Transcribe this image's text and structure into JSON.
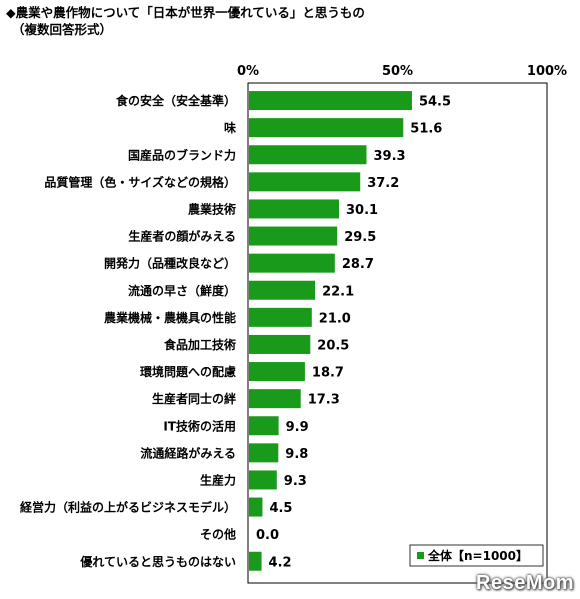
{
  "title": "◆農業や農作物について「日本が世界一優れている」と思うもの",
  "subtitle": "（複数回答形式）",
  "watermark": "ReseMom",
  "chart_data": {
    "type": "bar",
    "orientation": "horizontal",
    "categories": [
      "食の安全（安全基準）",
      "味",
      "国産品のブランド力",
      "品質管理（色・サイズなどの規格）",
      "農業技術",
      "生産者の顔がみえる",
      "開発力（品種改良など）",
      "流通の早さ（鮮度）",
      "農業機械・農機具の性能",
      "食品加工技術",
      "環境問題への配慮",
      "生産者同士の絆",
      "IT技術の活用",
      "流通経路がみえる",
      "生産力",
      "経営力（利益の上がるビジネスモデル）",
      "その他",
      "優れていると思うものはない"
    ],
    "series": [
      {
        "name": "全体【n=1000】",
        "values": [
          54.5,
          51.6,
          39.3,
          37.2,
          30.1,
          29.5,
          28.7,
          22.1,
          21.0,
          20.5,
          18.7,
          17.3,
          9.9,
          9.8,
          9.3,
          4.5,
          0.0,
          4.2
        ],
        "value_labels": [
          "54.5",
          "51.6",
          "39.3",
          "37.2",
          "30.1",
          "29.5",
          "28.7",
          "22.1",
          "21.0",
          "20.5",
          "18.7",
          "17.3",
          "9.9",
          "9.8",
          "9.3",
          "4.5",
          "0.0",
          "4.2"
        ]
      }
    ],
    "xlim": [
      0,
      100
    ],
    "x_ticks": [
      "0%",
      "50%",
      "100%"
    ],
    "bar_color": "#1a9a1a",
    "grid": false,
    "legend_position": "bottom-right"
  }
}
